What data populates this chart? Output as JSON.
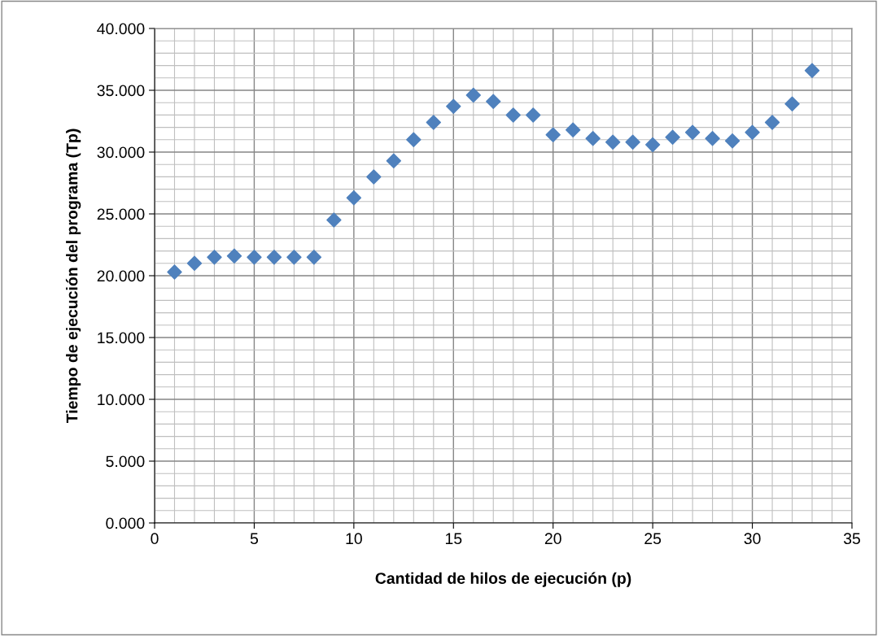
{
  "chart_data": {
    "type": "scatter",
    "xlabel": "Cantidad de hilos de ejecución (p)",
    "ylabel": "Tiempo de ejecución del programa (Tp)",
    "x": [
      1,
      2,
      3,
      4,
      5,
      6,
      7,
      8,
      9,
      10,
      11,
      12,
      13,
      14,
      15,
      16,
      17,
      18,
      19,
      20,
      21,
      22,
      23,
      24,
      25,
      26,
      27,
      28,
      29,
      30,
      31,
      32,
      33
    ],
    "series": [
      {
        "color": "#4f81bd",
        "values": [
          20.3,
          21.0,
          21.5,
          21.6,
          21.5,
          21.5,
          21.5,
          21.5,
          24.5,
          26.3,
          28.0,
          29.3,
          31.0,
          32.4,
          33.7,
          34.6,
          34.1,
          33.0,
          33.0,
          31.4,
          31.8,
          31.1,
          30.8,
          30.8,
          30.6,
          31.2,
          31.6,
          31.1,
          30.9,
          31.6,
          32.4,
          33.9,
          36.6
        ]
      }
    ],
    "xlim": [
      0,
      35
    ],
    "xticks": [
      0,
      5,
      10,
      15,
      20,
      25,
      30,
      35
    ],
    "ylim": [
      0,
      40
    ],
    "yticks": [
      {
        "value": 0,
        "label": "0.000"
      },
      {
        "value": 5,
        "label": "5.000"
      },
      {
        "value": 10,
        "label": "10.000"
      },
      {
        "value": 15,
        "label": "15.000"
      },
      {
        "value": 20,
        "label": "20.000"
      },
      {
        "value": 25,
        "label": "25.000"
      },
      {
        "value": 30,
        "label": "30.000"
      },
      {
        "value": 35,
        "label": "35.000"
      },
      {
        "value": 40,
        "label": "40.000"
      }
    ],
    "grid": true,
    "marker": "diamond",
    "legend": false
  }
}
